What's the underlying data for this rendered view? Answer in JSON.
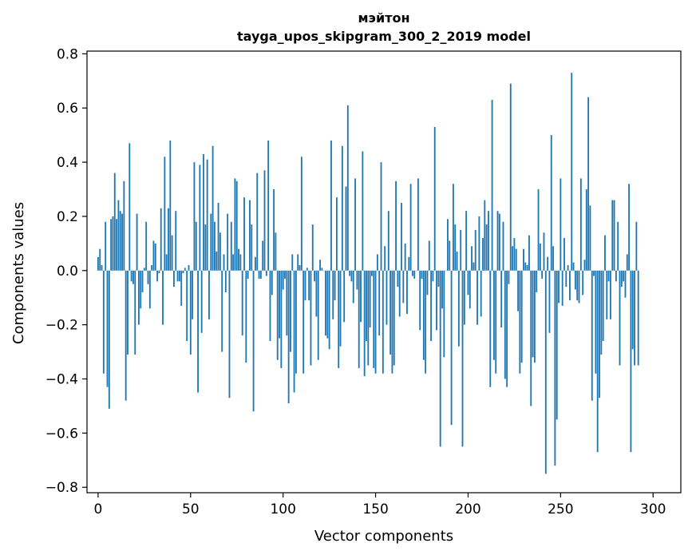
{
  "chart_data": {
    "type": "bar",
    "title_line1": "мэйтон",
    "title_line2": "tayga_upos_skipgram_300_2_2019 model",
    "xlabel": "Vector components",
    "ylabel": "Components values",
    "xlim": [
      -6,
      315
    ],
    "ylim": [
      -0.82,
      0.81
    ],
    "xticks": [
      0,
      50,
      100,
      150,
      200,
      250,
      300
    ],
    "xtick_labels": [
      "0",
      "50",
      "100",
      "150",
      "200",
      "250",
      "300"
    ],
    "yticks": [
      0.8,
      0.6,
      0.4,
      0.2,
      0.0,
      -0.2,
      -0.4,
      -0.6,
      -0.8
    ],
    "ytick_labels": [
      "0.8",
      "0.6",
      "0.4",
      "0.2",
      "0.0",
      "−0.2",
      "−0.4",
      "−0.6",
      "−0.8"
    ],
    "bar_color": "#1f77b4",
    "grid": false,
    "legend": "none",
    "values": [
      0.05,
      0.08,
      0.02,
      -0.38,
      0.18,
      -0.43,
      -0.51,
      0.19,
      0.2,
      0.36,
      0.19,
      0.26,
      0.22,
      0.21,
      0.33,
      -0.48,
      -0.31,
      0.47,
      -0.04,
      -0.05,
      -0.31,
      0.21,
      -0.2,
      -0.14,
      -0.08,
      0.01,
      0.18,
      -0.05,
      -0.14,
      0.02,
      0.11,
      0.1,
      -0.04,
      -0.01,
      0.23,
      -0.2,
      0.42,
      0.06,
      0.23,
      0.48,
      0.13,
      -0.06,
      0.22,
      -0.04,
      -0.04,
      -0.13,
      -0.01,
      0.01,
      -0.26,
      0.02,
      -0.31,
      -0.18,
      0.4,
      0.18,
      -0.45,
      0.39,
      -0.23,
      0.43,
      0.17,
      0.41,
      -0.18,
      0.21,
      0.46,
      0.18,
      0.07,
      0.25,
      0.14,
      -0.3,
      0.06,
      -0.08,
      0.21,
      -0.47,
      0.18,
      0.06,
      0.34,
      0.33,
      0.08,
      0.06,
      -0.24,
      0.27,
      -0.34,
      -0.03,
      0.26,
      0.17,
      -0.52,
      0.05,
      0.36,
      -0.03,
      -0.03,
      0.11,
      0.37,
      -0.02,
      0.48,
      -0.26,
      -0.09,
      0.3,
      0.14,
      -0.33,
      -0.25,
      -0.36,
      -0.07,
      -0.03,
      -0.24,
      -0.49,
      -0.3,
      0.06,
      -0.45,
      -0.38,
      0.06,
      0.02,
      0.42,
      -0.38,
      -0.11,
      0.01,
      -0.11,
      -0.35,
      0.17,
      -0.04,
      -0.17,
      -0.33,
      0.04,
      0.01,
      0.0,
      -0.24,
      -0.25,
      -0.29,
      0.48,
      -0.18,
      -0.11,
      0.27,
      -0.36,
      -0.28,
      0.46,
      -0.19,
      0.31,
      0.61,
      -0.02,
      -0.04,
      -0.12,
      0.34,
      -0.07,
      -0.36,
      -0.19,
      0.44,
      -0.39,
      -0.26,
      -0.35,
      -0.21,
      -0.02,
      -0.36,
      -0.38,
      0.06,
      -0.24,
      0.4,
      -0.38,
      0.09,
      -0.2,
      0.22,
      -0.31,
      -0.38,
      -0.35,
      0.33,
      -0.06,
      -0.17,
      0.25,
      -0.12,
      0.1,
      -0.16,
      0.05,
      0.32,
      -0.02,
      -0.03,
      0.0,
      0.34,
      -0.22,
      -0.03,
      -0.33,
      -0.38,
      -0.09,
      0.11,
      -0.26,
      -0.04,
      0.53,
      -0.22,
      -0.06,
      -0.65,
      -0.14,
      -0.32,
      0.0,
      0.19,
      0.11,
      -0.57,
      0.32,
      0.17,
      0.07,
      -0.28,
      0.15,
      -0.65,
      -0.2,
      0.22,
      -0.09,
      -0.14,
      0.09,
      0.03,
      0.15,
      -0.2,
      0.2,
      -0.17,
      0.12,
      0.26,
      0.17,
      0.22,
      -0.43,
      0.63,
      -0.33,
      -0.38,
      0.22,
      0.21,
      -0.21,
      0.18,
      -0.4,
      -0.43,
      -0.05,
      0.69,
      0.09,
      0.12,
      0.08,
      -0.15,
      -0.38,
      -0.34,
      0.08,
      0.03,
      0.02,
      0.13,
      -0.5,
      -0.32,
      -0.34,
      -0.08,
      0.3,
      0.1,
      -0.03,
      0.14,
      -0.75,
      0.05,
      -0.23,
      0.5,
      0.09,
      -0.72,
      -0.55,
      -0.12,
      0.34,
      -0.13,
      0.12,
      -0.06,
      0.02,
      -0.11,
      0.73,
      0.03,
      -0.07,
      -0.11,
      -0.12,
      0.34,
      -0.09,
      0.04,
      0.3,
      0.64,
      0.24,
      -0.48,
      -0.02,
      -0.38,
      -0.67,
      -0.47,
      -0.31,
      -0.26,
      0.13,
      -0.18,
      -0.04,
      -0.18,
      0.26,
      0.26,
      -0.04,
      0.18,
      -0.35,
      -0.06,
      -0.04,
      -0.1,
      0.06,
      0.32,
      -0.67,
      -0.29,
      -0.35,
      0.18,
      -0.35
    ]
  }
}
